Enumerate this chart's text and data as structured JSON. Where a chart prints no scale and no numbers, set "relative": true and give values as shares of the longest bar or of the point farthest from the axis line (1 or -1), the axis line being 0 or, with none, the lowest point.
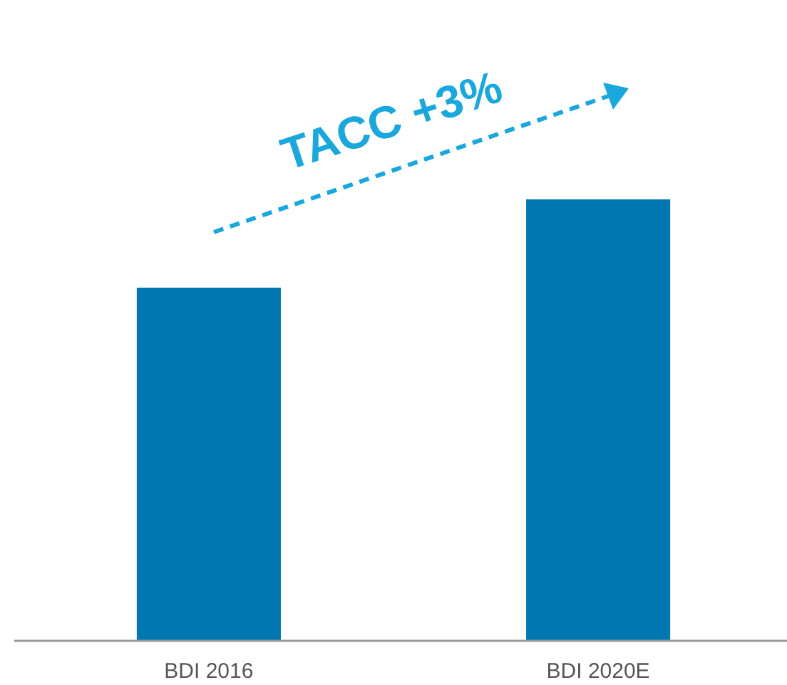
{
  "chart_data": {
    "type": "bar",
    "relative": true,
    "categories": [
      "BDI 2016",
      "BDI 2020E"
    ],
    "values": [
      0.8,
      1
    ],
    "color": "#0077b0",
    "annotations": [
      "TACC +3%"
    ]
  }
}
